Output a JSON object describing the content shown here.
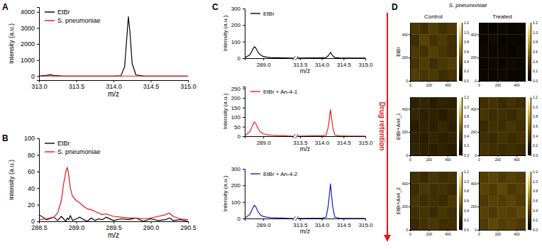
{
  "chart_data": [
    {
      "panel": "A",
      "type": "line",
      "xlabel": "m/z",
      "ylabel": "Intensity (a.u.)",
      "xlim": [
        313.0,
        315.0
      ],
      "ylim": [
        -250,
        4300
      ],
      "xticks": [
        {
          "value": 313,
          "label": "313.0"
        },
        313.5,
        {
          "value": 314,
          "label": "314.0"
        },
        314.5,
        {
          "value": 315,
          "label": "315.0"
        }
      ],
      "yticks": [
        0,
        1000,
        2000,
        3000,
        4000
      ],
      "legend": "upper left",
      "series": [
        {
          "name": "EtBr",
          "color": "#000000",
          "x": [
            313.0,
            313.1,
            313.15,
            313.2,
            313.3,
            313.5,
            313.8,
            314.0,
            314.1,
            314.15,
            314.18,
            314.2,
            314.22,
            314.25,
            314.3,
            314.4,
            314.6,
            315.0
          ],
          "values": [
            10,
            40,
            90,
            40,
            10,
            5,
            5,
            5,
            20,
            600,
            2500,
            3700,
            2800,
            800,
            80,
            10,
            5,
            5
          ]
        },
        {
          "name": "S. pneumoniae",
          "color": "#e8141b",
          "x": [
            313.0,
            313.5,
            314.0,
            314.5,
            315.0
          ],
          "values": [
            3,
            3,
            3,
            3,
            3
          ]
        }
      ]
    },
    {
      "panel": "B",
      "type": "line",
      "xlabel": "m/z",
      "ylabel": "Intensity (a.u.)",
      "xlim": [
        288.5,
        290.5
      ],
      "ylim": [
        0,
        100
      ],
      "xticks": [
        288.5,
        {
          "value": 289,
          "label": "289.0"
        },
        289.5,
        {
          "value": 290,
          "label": "290.0"
        },
        290.5
      ],
      "yticks": [
        0,
        20,
        40,
        60,
        80,
        100
      ],
      "legend": "upper left",
      "series": [
        {
          "name": "EtBr",
          "color": "#000000",
          "x": [
            288.5,
            288.6,
            288.7,
            288.75,
            288.8,
            288.83,
            288.86,
            288.88,
            288.9,
            288.92,
            288.95,
            289.0,
            289.05,
            289.1,
            289.15,
            289.2,
            289.25,
            289.3,
            289.35,
            289.4,
            289.5,
            289.6,
            289.7,
            289.8,
            289.9,
            290.0,
            290.1,
            290.2,
            290.25,
            290.3,
            290.4,
            290.5
          ],
          "values": [
            8,
            2,
            5,
            1,
            6,
            3,
            0,
            4,
            2,
            7,
            1,
            3,
            5,
            2,
            0,
            4,
            1,
            3,
            2,
            5,
            1,
            3,
            2,
            4,
            0,
            3,
            1,
            2,
            4,
            1,
            2,
            0
          ]
        },
        {
          "name": "S. pneumoniae",
          "color": "#e8141b",
          "x": [
            288.5,
            288.6,
            288.7,
            288.75,
            288.8,
            288.83,
            288.86,
            288.88,
            288.9,
            288.92,
            288.95,
            289.0,
            289.05,
            289.1,
            289.15,
            289.2,
            289.25,
            289.3,
            289.35,
            289.4,
            289.5,
            289.6,
            289.7,
            289.8,
            289.9,
            290.0,
            290.1,
            290.2,
            290.25,
            290.3,
            290.4,
            290.5
          ],
          "values": [
            2,
            3,
            5,
            10,
            25,
            45,
            60,
            65,
            55,
            40,
            30,
            25,
            22,
            18,
            15,
            14,
            12,
            10,
            8,
            9,
            6,
            5,
            4,
            4,
            3,
            4,
            6,
            8,
            10,
            6,
            3,
            2
          ]
        }
      ]
    },
    {
      "panel": "C",
      "type": "line",
      "xlabel": "m/z",
      "ylabel": "Intensity (a.u.)",
      "xlim": [
        288.75,
        315.0
      ],
      "xbreak": [
        289.4,
        313.45
      ],
      "ylim": [
        0,
        300
      ],
      "xticks": [
        {
          "value": 289,
          "label": "289.0"
        },
        313.5,
        {
          "value": 314,
          "label": "314.0"
        },
        314.5,
        {
          "value": 315,
          "label": "315.0"
        }
      ],
      "yticks": [
        0,
        100,
        200,
        300
      ],
      "legend": "upper left",
      "series": [
        {
          "name": "EtBr",
          "color": "#000000",
          "x": [
            288.75,
            288.82,
            288.86,
            288.88,
            288.9,
            288.93,
            288.96,
            289.0,
            289.05,
            289.1,
            289.15,
            289.2,
            289.25,
            289.3,
            289.35,
            313.5,
            313.8,
            314.0,
            314.1,
            314.15,
            314.2,
            314.25,
            314.3,
            314.4,
            314.6,
            315.0
          ],
          "values": [
            2,
            20,
            55,
            70,
            60,
            35,
            20,
            10,
            6,
            4,
            3,
            3,
            2,
            2,
            1,
            1,
            2,
            2,
            4,
            15,
            35,
            15,
            4,
            2,
            1,
            1
          ]
        }
      ]
    },
    {
      "type": "line",
      "xlabel": "m/z",
      "ylabel": "Intensity (a.u.)",
      "annotation": "Drug retention",
      "xlim": [
        288.75,
        315.0
      ],
      "xbreak": [
        289.4,
        313.45
      ],
      "ylim": [
        0,
        260
      ],
      "xticks": [
        {
          "value": 289,
          "label": "289.0"
        },
        313.5,
        {
          "value": 314,
          "label": "314.0"
        },
        314.5,
        {
          "value": 315,
          "label": "315.0"
        }
      ],
      "yticks": [
        0,
        50,
        100,
        150,
        200,
        250
      ],
      "legend": "upper left",
      "series": [
        {
          "name": "EtBr + An-4-1",
          "color": "#ff1a1a",
          "x": [
            288.75,
            288.82,
            288.86,
            288.88,
            288.9,
            288.93,
            288.96,
            289.0,
            289.05,
            289.1,
            289.15,
            289.2,
            289.25,
            289.3,
            289.35,
            313.5,
            313.8,
            314.0,
            314.1,
            314.15,
            314.2,
            314.25,
            314.3,
            314.4,
            314.6,
            315.0
          ],
          "values": [
            2,
            25,
            60,
            75,
            65,
            40,
            22,
            12,
            8,
            5,
            4,
            3,
            3,
            2,
            1,
            1,
            2,
            2,
            5,
            50,
            140,
            50,
            6,
            2,
            1,
            1
          ]
        }
      ]
    },
    {
      "type": "line",
      "xlabel": "m/z",
      "ylabel": "Intensity (a.u.)",
      "xlim": [
        288.75,
        315.0
      ],
      "xbreak": [
        289.4,
        313.45
      ],
      "ylim": [
        0,
        300
      ],
      "xticks": [
        {
          "value": 289,
          "label": "289.0"
        },
        313.5,
        {
          "value": 314,
          "label": "314.0"
        },
        314.5,
        {
          "value": 315,
          "label": "315.0"
        }
      ],
      "yticks": [
        0,
        100,
        200,
        300
      ],
      "legend": "upper left",
      "series": [
        {
          "name": "EtBr + An-4-2",
          "color": "#1a1acc",
          "x": [
            288.75,
            288.82,
            288.86,
            288.88,
            288.9,
            288.93,
            288.96,
            289.0,
            289.05,
            289.1,
            289.15,
            289.2,
            289.25,
            289.3,
            289.35,
            313.5,
            313.8,
            314.0,
            314.1,
            314.15,
            314.2,
            314.25,
            314.3,
            314.4,
            314.6,
            315.0
          ],
          "values": [
            2,
            25,
            65,
            80,
            70,
            40,
            22,
            12,
            8,
            5,
            4,
            3,
            3,
            2,
            1,
            1,
            2,
            2,
            8,
            80,
            210,
            70,
            8,
            2,
            1,
            1
          ]
        }
      ]
    },
    {
      "panel": "D",
      "type": "heatmap",
      "title": "S. pneumoniae",
      "columns": [
        "Control",
        "Treated"
      ],
      "rows": [
        "EtBr",
        "EtBr+An4_1",
        "EtBr+An4_2"
      ],
      "xlim": [
        0,
        500
      ],
      "ylim": [
        0,
        500
      ],
      "xticks": [
        0,
        200,
        400
      ],
      "yticks": [
        0,
        200,
        400
      ],
      "colorbar_range": [
        0,
        1.2
      ],
      "colorbar_ticks": [
        {
          "value": 0,
          "label": "0.0"
        },
        0.2,
        0.4,
        0.6,
        0.8,
        {
          "value": 1,
          "label": "1.0"
        },
        1.2
      ],
      "cells": [
        [
          [
            [
              0.35,
              0.3,
              0.38,
              0.32,
              0.36
            ],
            [
              0.3,
              0.4,
              0.33,
              0.37,
              0.31
            ],
            [
              0.36,
              0.32,
              0.39,
              0.34,
              0.3
            ],
            [
              0.33,
              0.37,
              0.31,
              0.35,
              0.38
            ],
            [
              0.38,
              0.34,
              0.36,
              0.3,
              0.33
            ]
          ],
          [
            [
              0.06,
              0.04,
              0.07,
              0.05,
              0.06
            ],
            [
              0.05,
              0.08,
              0.04,
              0.06,
              0.05
            ],
            [
              0.07,
              0.05,
              0.06,
              0.04,
              0.07
            ],
            [
              0.04,
              0.06,
              0.05,
              0.07,
              0.05
            ],
            [
              0.06,
              0.05,
              0.07,
              0.05,
              0.04
            ]
          ]
        ],
        [
          [
            [
              0.22,
              0.25,
              0.2,
              0.24,
              0.21
            ],
            [
              0.26,
              0.21,
              0.23,
              0.2,
              0.25
            ],
            [
              0.2,
              0.24,
              0.22,
              0.26,
              0.22
            ],
            [
              0.23,
              0.2,
              0.25,
              0.21,
              0.24
            ],
            [
              0.25,
              0.22,
              0.21,
              0.23,
              0.2
            ]
          ],
          [
            [
              0.3,
              0.33,
              0.28,
              0.32,
              0.29
            ],
            [
              0.34,
              0.29,
              0.31,
              0.28,
              0.33
            ],
            [
              0.28,
              0.32,
              0.3,
              0.34,
              0.3
            ],
            [
              0.31,
              0.28,
              0.33,
              0.29,
              0.32
            ],
            [
              0.33,
              0.3,
              0.29,
              0.31,
              0.28
            ]
          ]
        ],
        [
          [
            [
              0.32,
              0.28,
              0.34,
              0.3,
              0.33
            ],
            [
              0.29,
              0.35,
              0.31,
              0.33,
              0.28
            ],
            [
              0.34,
              0.3,
              0.32,
              0.29,
              0.35
            ],
            [
              0.31,
              0.33,
              0.28,
              0.34,
              0.3
            ],
            [
              0.28,
              0.32,
              0.35,
              0.3,
              0.31
            ]
          ],
          [
            [
              0.38,
              0.42,
              0.36,
              0.4,
              0.37
            ],
            [
              0.41,
              0.37,
              0.43,
              0.36,
              0.4
            ],
            [
              0.36,
              0.4,
              0.38,
              0.42,
              0.37
            ],
            [
              0.4,
              0.36,
              0.41,
              0.38,
              0.43
            ],
            [
              0.37,
              0.43,
              0.38,
              0.4,
              0.36
            ]
          ]
        ]
      ]
    }
  ]
}
